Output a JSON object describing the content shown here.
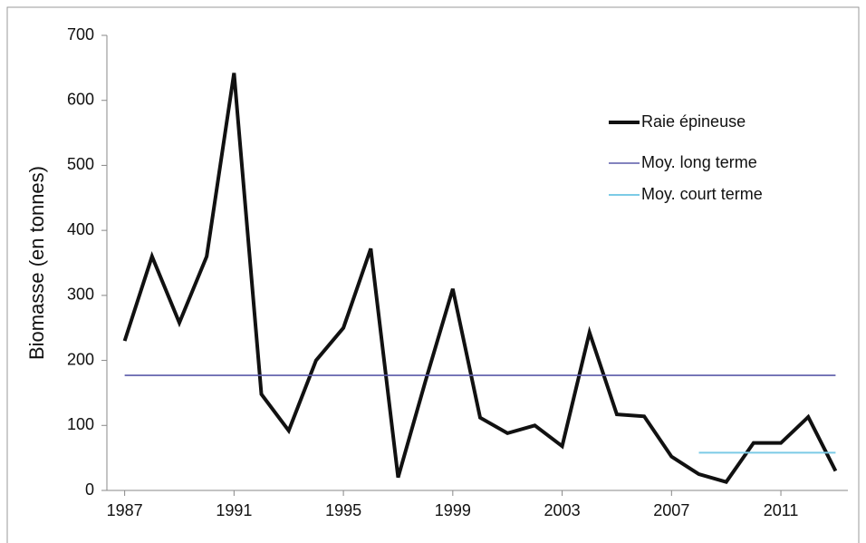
{
  "chart_data": {
    "type": "line",
    "y_label": "Biomasse (en tonnes)",
    "xlim": [
      1986.35,
      2013.45
    ],
    "xticks": [
      1987,
      1991,
      1995,
      1999,
      2003,
      2007,
      2011
    ],
    "ylim": [
      0,
      700
    ],
    "yticks": [
      0,
      100,
      200,
      300,
      400,
      500,
      600,
      700
    ],
    "legend": "upper right",
    "series": [
      {
        "name": "Raie épineuse",
        "color": "#111111",
        "width": 4,
        "x": [
          1987,
          1988,
          1989,
          1990,
          1991,
          1992,
          1993,
          1994,
          1995,
          1996,
          1997,
          1998,
          1999,
          2000,
          2001,
          2002,
          2003,
          2004,
          2005,
          2006,
          2007,
          2008,
          2009,
          2010,
          2011,
          2012,
          2013
        ],
        "values": [
          230,
          360,
          258,
          360,
          642,
          148,
          92,
          200,
          250,
          372,
          20,
          168,
          310,
          112,
          88,
          100,
          68,
          243,
          117,
          114,
          52,
          25,
          13,
          73,
          73,
          113,
          30
        ]
      },
      {
        "name": "Moy. long terme",
        "color": "#5a5aa8",
        "width": 1.6,
        "x": [
          1987,
          2013
        ],
        "values": [
          177,
          177
        ]
      },
      {
        "name": "Moy. court terme",
        "color": "#7ccbe6",
        "width": 2,
        "x": [
          2008,
          2013
        ],
        "values": [
          58,
          58
        ]
      }
    ]
  }
}
